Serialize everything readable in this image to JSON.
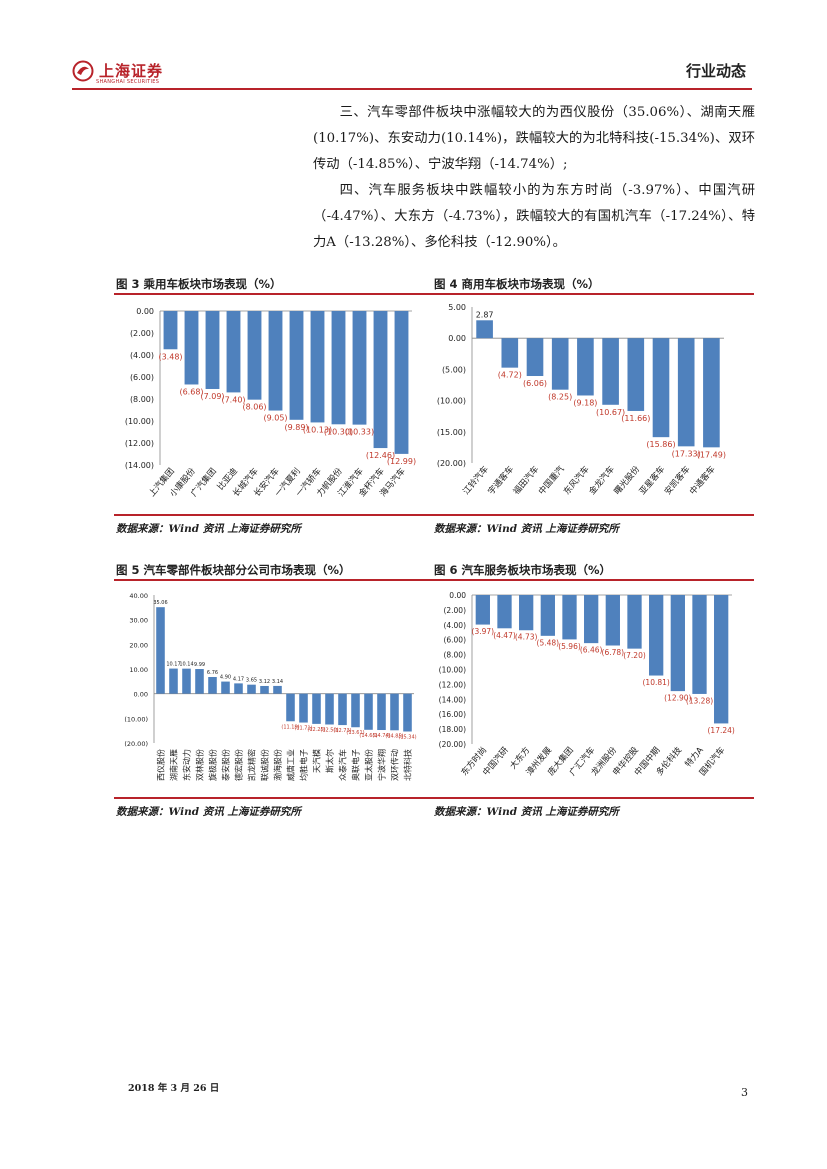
{
  "header": {
    "logo_cn": "上海证券",
    "logo_en": "SHANGHAI SECURITIES",
    "section_title": "行业动态"
  },
  "body": {
    "p1": "三、汽车零部件板块中涨幅较大的为西仪股份（35.06%）、湖南天雁(10.17%)、东安动力(10.14%)，跌幅较大的为北特科技(-15.34%)、双环传动（-14.85%）、宁波华翔（-14.74%）;",
    "p2": "四、汽车服务板块中跌幅较小的为东方时尚（-3.97%）、中国汽研（-4.47%）、大东方（-4.73%），跌幅较大的有国机汽车（-17.24%）、特力A（-13.28%）、多伦科技（-12.90%）。"
  },
  "colors": {
    "bar": "#4f81bd",
    "label": "#c0392b",
    "accent": "#b8232a"
  },
  "figures": {
    "fig3": {
      "title": "图 3 乘用车板块市场表现（%）",
      "source": "数据来源：Wind 资讯 上海证券研究所"
    },
    "fig4": {
      "title": "图 4 商用车板块市场表现（%）",
      "source": "数据来源：Wind 资讯 上海证券研究所"
    },
    "fig5": {
      "title": "图 5 汽车零部件板块部分公司市场表现（%）",
      "source": "数据来源：Wind 资讯 上海证券研究所"
    },
    "fig6": {
      "title": "图 6 汽车服务板块市场表现（%）",
      "source": "数据来源：Wind 资讯 上海证券研究所"
    }
  },
  "chart_data": [
    {
      "id": "fig3",
      "type": "bar",
      "title": "乘用车板块市场表现（%）",
      "categories": [
        "上汽集团",
        "小康股份",
        "广汽集团",
        "比亚迪",
        "长城汽车",
        "长安汽车",
        "一汽夏利",
        "一汽轿车",
        "力帆股份",
        "江淮汽车",
        "金杯汽车",
        "海马汽车"
      ],
      "values": [
        -3.48,
        -6.68,
        -7.09,
        -7.4,
        -8.06,
        -9.05,
        -9.89,
        -10.13,
        -10.3,
        -10.33,
        -12.46,
        -12.99
      ],
      "labels": [
        "(3.48)",
        "(6.68)",
        "(7.09)",
        "(7.40)",
        "(8.06)",
        "(9.05)",
        "(9.89)",
        "(10.13)",
        "(10.30)",
        "(10.33)",
        "(12.46)",
        "(12.99)"
      ],
      "yticks": [
        "0.00",
        "(2.00)",
        "(4.00)",
        "(6.00)",
        "(8.00)",
        "(10.00)",
        "(12.00)",
        "(14.00)"
      ],
      "ylim": [
        -14,
        0
      ]
    },
    {
      "id": "fig4",
      "type": "bar",
      "title": "商用车板块市场表现（%）",
      "categories": [
        "江铃汽车",
        "宇通客车",
        "福田汽车",
        "中国重汽",
        "东风汽车",
        "金龙汽车",
        "曙光股份",
        "亚星客车",
        "安凯客车",
        "中通客车"
      ],
      "values": [
        2.87,
        -4.72,
        -6.06,
        -8.25,
        -9.18,
        -10.67,
        -11.66,
        -15.86,
        -17.33,
        -17.49
      ],
      "labels": [
        "2.87",
        "(4.72)",
        "(6.06)",
        "(8.25)",
        "(9.18)",
        "(10.67)",
        "(11.66)",
        "(15.86)",
        "(17.33)",
        "(17.49)"
      ],
      "yticks": [
        "5.00",
        "0.00",
        "(5.00)",
        "(10.00)",
        "(15.00)",
        "(20.00)"
      ],
      "ylim": [
        -20,
        5
      ]
    },
    {
      "id": "fig5",
      "type": "bar",
      "title": "汽车零部件板块部分公司市场表现（%）",
      "categories": [
        "西仪股份",
        "湖南天雁",
        "东安动力",
        "双林股份",
        "旋极股份",
        "泰安股份",
        "德宏股份",
        "凯龙精密",
        "联诚股份",
        "渤海股份",
        "威唐工业",
        "均胜电子",
        "天汽模",
        "斯太尔",
        "众泰汽车",
        "奥联电子",
        "亚太股份",
        "宁波华翔",
        "双环传动",
        "北特科技"
      ],
      "values": [
        35.06,
        10.17,
        10.14,
        9.99,
        6.76,
        4.9,
        4.17,
        3.65,
        3.12,
        3.14,
        -11.19,
        -11.71,
        -12.25,
        -12.5,
        -12.73,
        -13.61,
        -14.65,
        -14.74,
        -14.85,
        -15.34
      ],
      "labels": [
        "35.06",
        "10.17",
        "10.14",
        "9.99",
        "6.76",
        "4.90",
        "4.17",
        "3.65",
        "3.12",
        "3.14",
        "(11.19)",
        "(11.71)",
        "(12.25)",
        "(12.50)",
        "(12.73)",
        "(13.61)",
        "(14.65)",
        "(14.74)",
        "(14.85)",
        "(15.34)"
      ],
      "yticks": [
        "40.00",
        "30.00",
        "20.00",
        "10.00",
        "0.00",
        "(10.00)",
        "(20.00)"
      ],
      "ylim": [
        -20,
        40
      ]
    },
    {
      "id": "fig6",
      "type": "bar",
      "title": "汽车服务板块市场表现（%）",
      "categories": [
        "东方时尚",
        "中国汽研",
        "大东方",
        "漳州发展",
        "庞大集团",
        "广汇汽车",
        "龙洲股份",
        "申华控股",
        "中国中期",
        "多伦科技",
        "特力A",
        "国机汽车"
      ],
      "values": [
        -3.97,
        -4.47,
        -4.73,
        -5.48,
        -5.96,
        -6.46,
        -6.78,
        -7.2,
        -10.81,
        -12.9,
        -13.28,
        -17.24
      ],
      "labels": [
        "(3.97)",
        "(4.47)",
        "(4.73)",
        "(5.48)",
        "(5.96)",
        "(6.46)",
        "(6.78)",
        "(7.20)",
        "(10.81)",
        "(12.90)",
        "(13.28)",
        "(17.24)"
      ],
      "yticks": [
        "0.00",
        "(2.00)",
        "(4.00)",
        "(6.00)",
        "(8.00)",
        "(10.00)",
        "(12.00)",
        "(14.00)",
        "(16.00)",
        "(18.00)",
        "(20.00)"
      ],
      "ylim": [
        -20,
        0
      ]
    }
  ],
  "footer": {
    "date": "2018 年 3 月 26 日",
    "page": "3"
  }
}
